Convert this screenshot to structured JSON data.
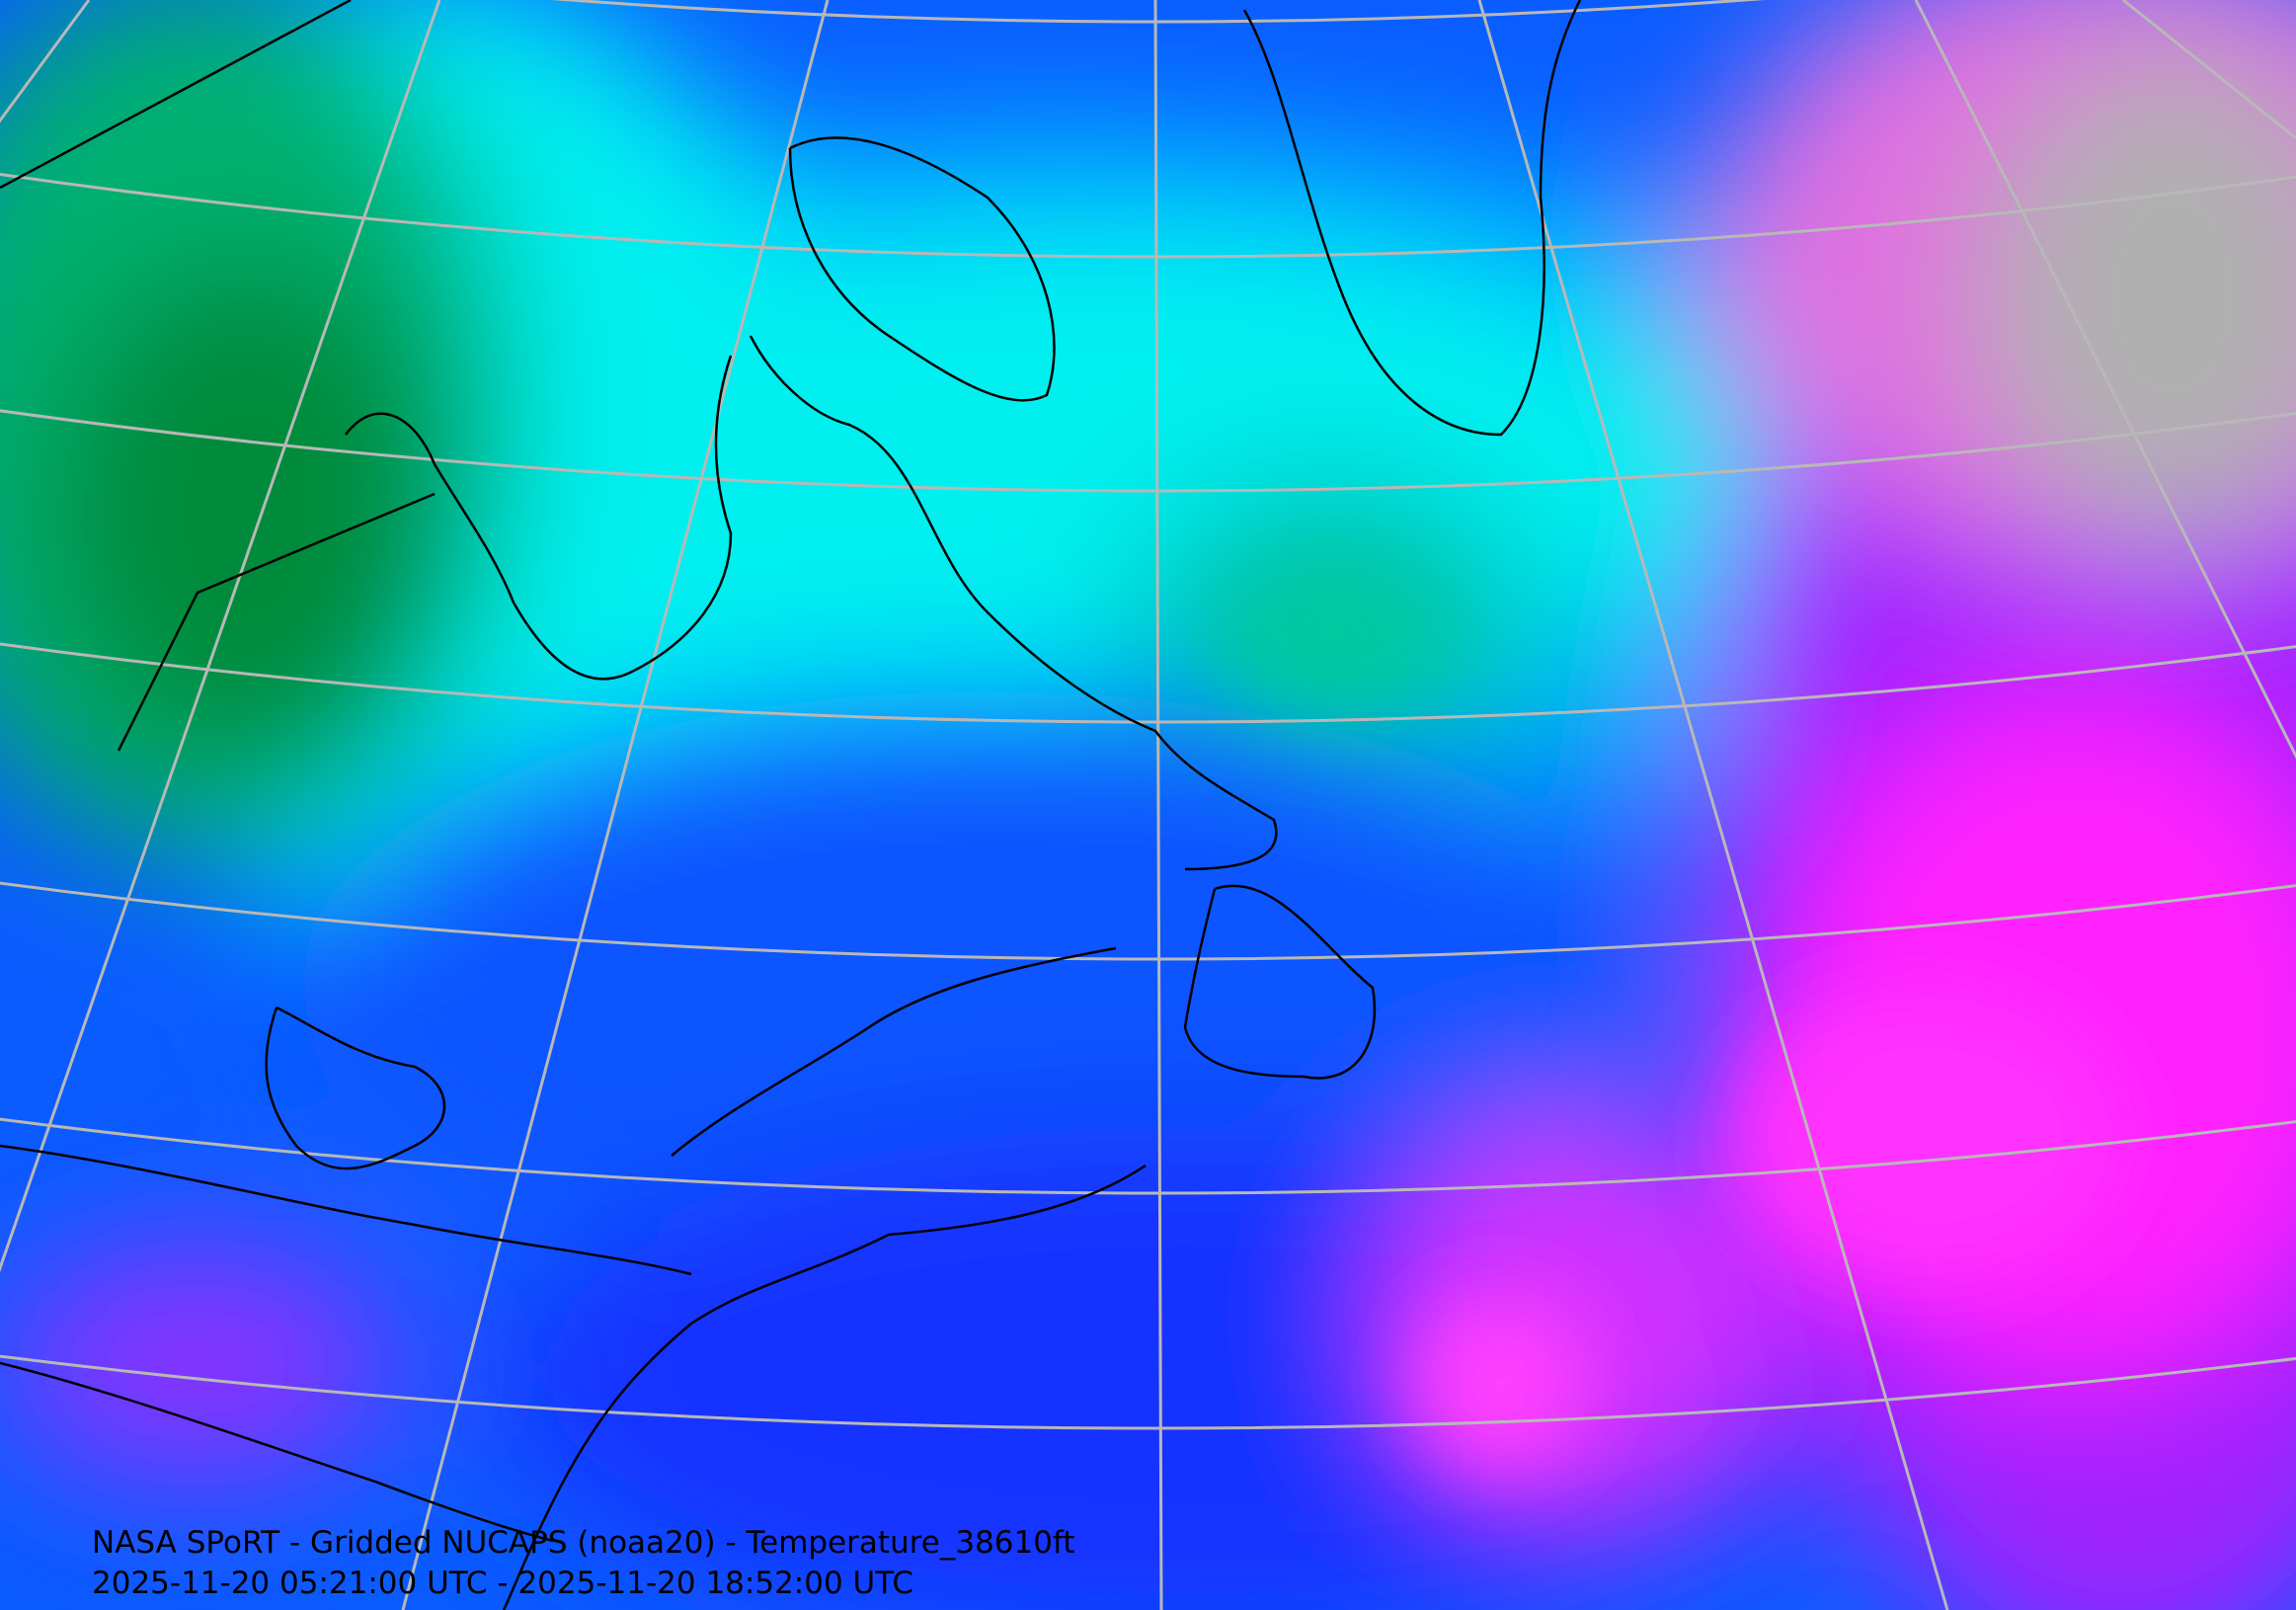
{
  "map": {
    "title": "NASA SPoRT - Gridded NUCAPS (noaa20) - Temperature_38610ft",
    "time_range": "2025-11-20 05:21:00 UTC - 2025-11-20 18:52:00 UTC",
    "colors": {
      "warm_green": "#008a3a",
      "green": "#00c080",
      "cyan": "#00f0f0",
      "light_blue": "#00a8ff",
      "blue": "#0a5cff",
      "deep_blue": "#1020ff",
      "purple": "#8a10ff",
      "magenta": "#ff20ff",
      "pink": "#e070e0",
      "gray": "#b0b0b0",
      "graticule": "#b8b8b8",
      "coastline": "#000000"
    }
  }
}
